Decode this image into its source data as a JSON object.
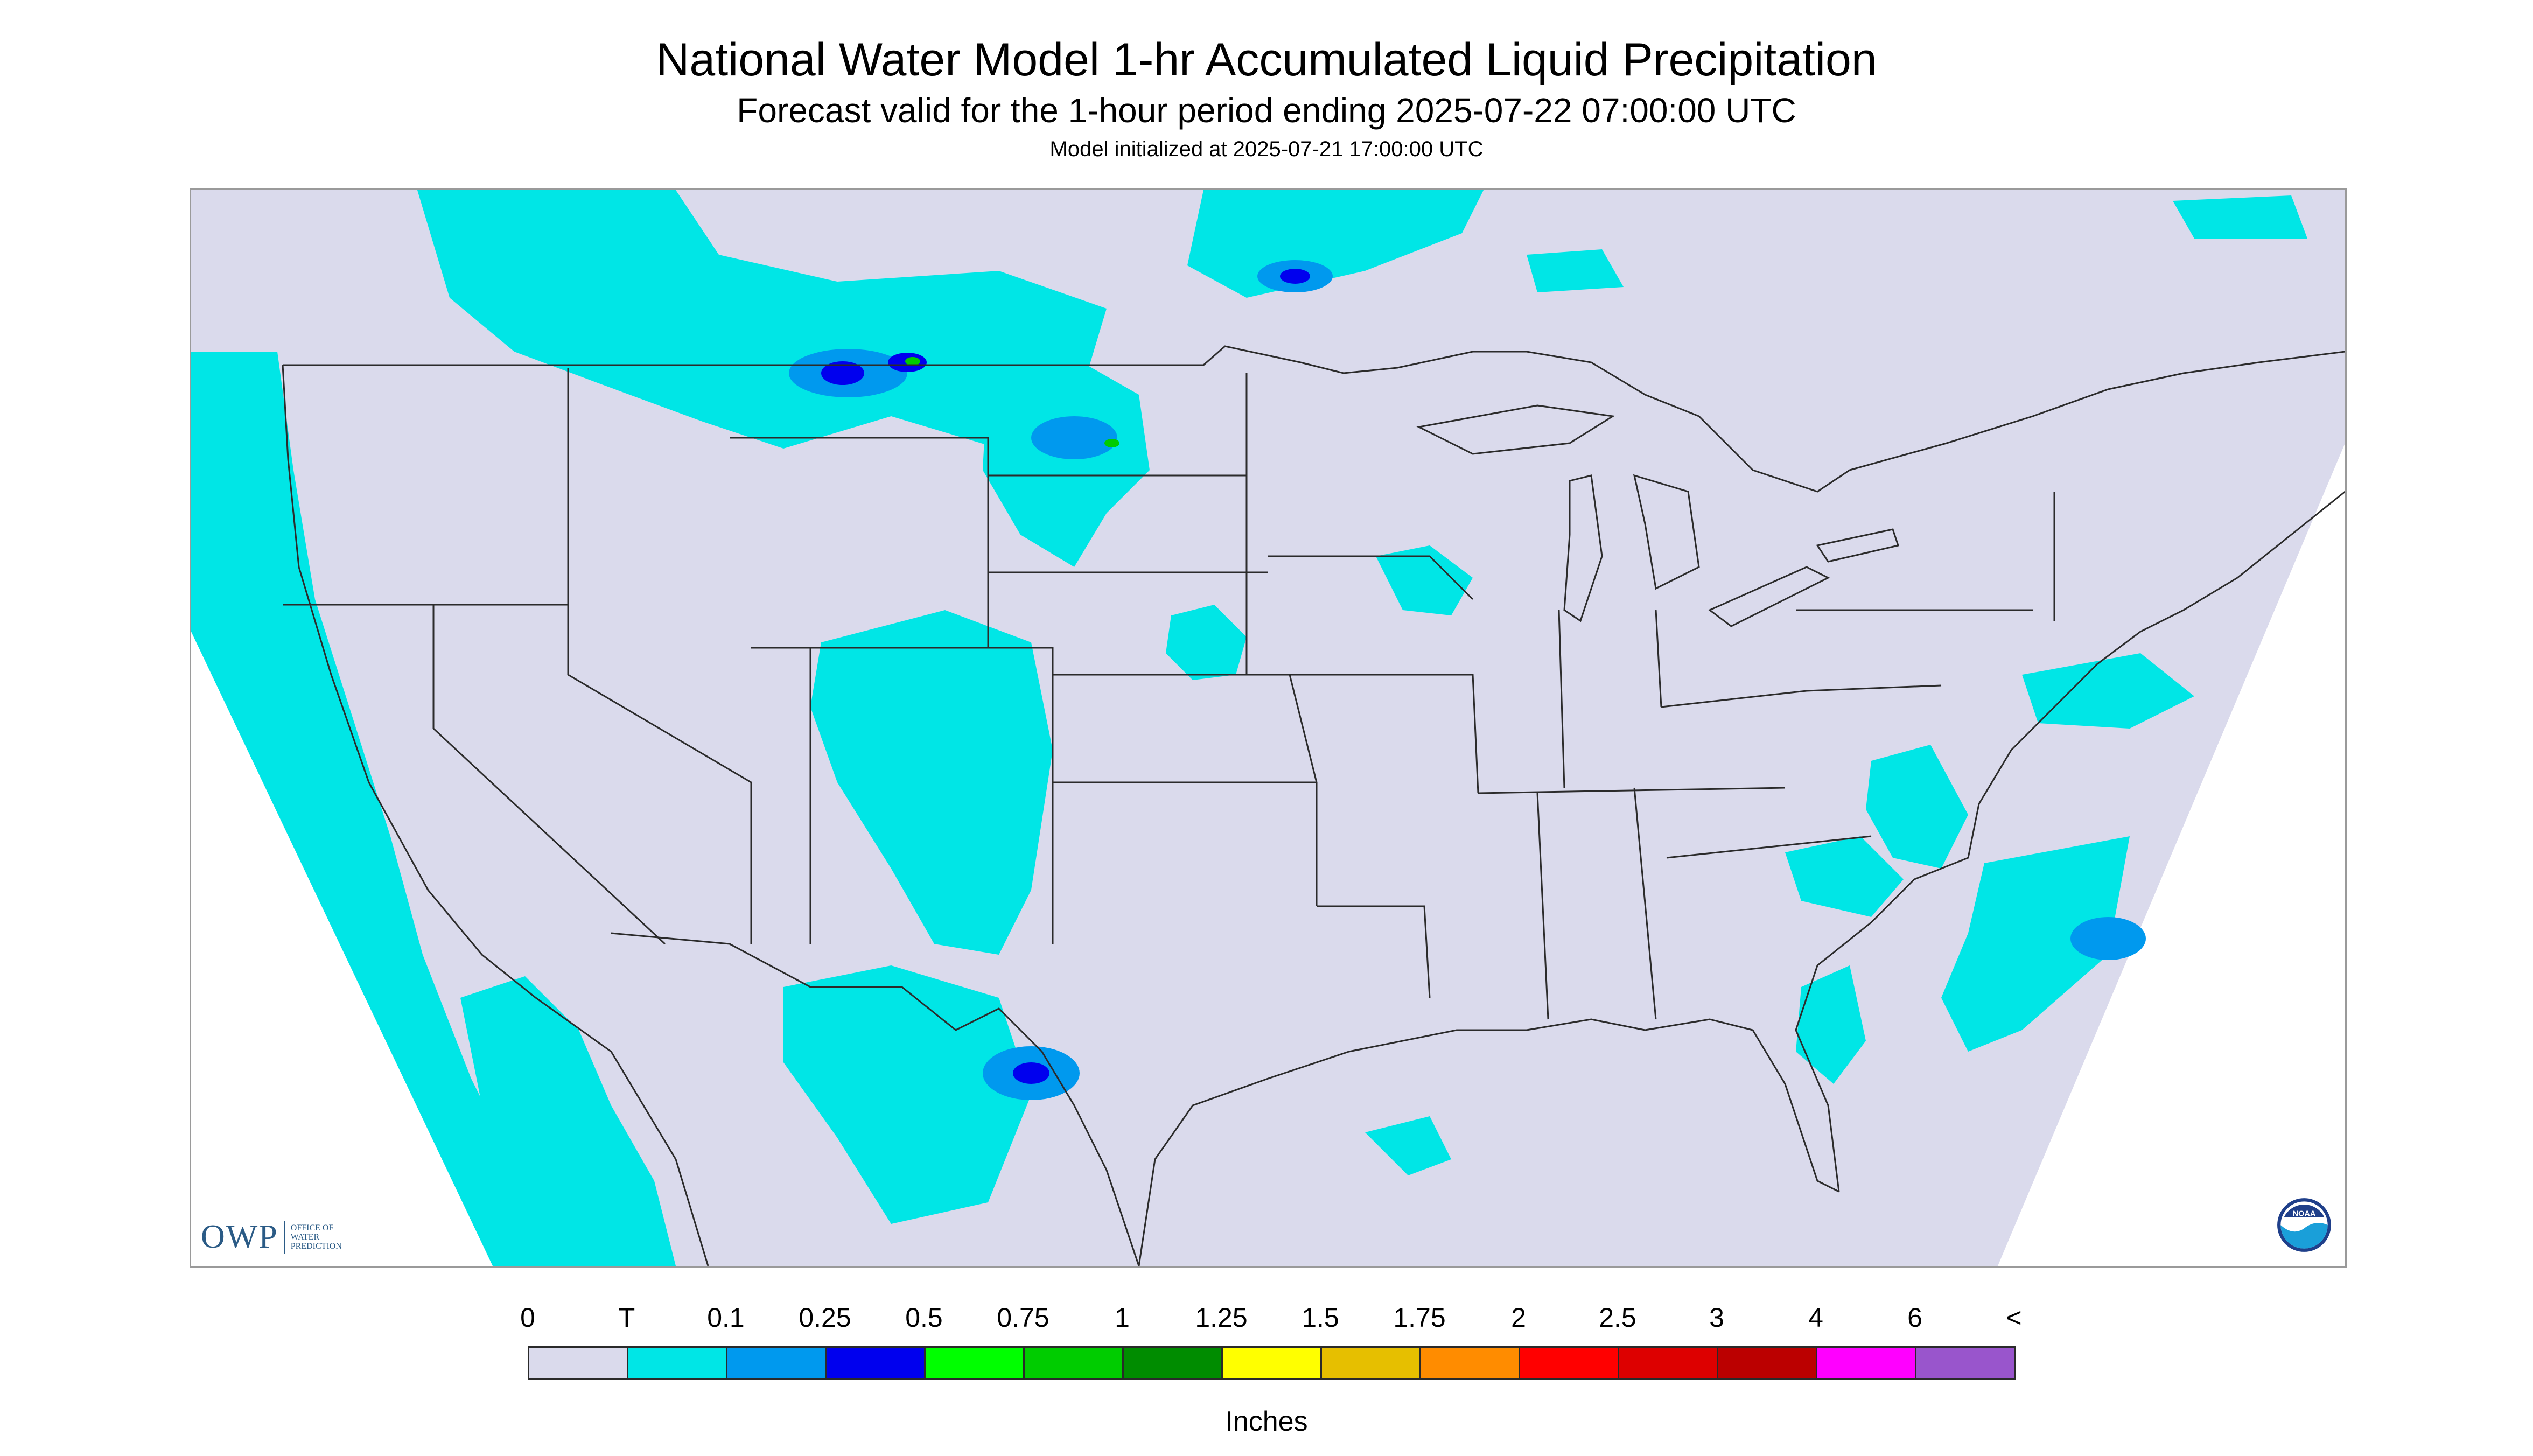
{
  "header": {
    "title": "National Water Model 1-hr Accumulated Liquid Precipitation",
    "subtitle": "Forecast valid for the 1-hour period ending 2025-07-22 07:00:00 UTC",
    "init_line": "Model initialized at 2025-07-21 17:00:00 UTC"
  },
  "map": {
    "background_color": "#dadaec",
    "boundary_color": "#2b2b2b",
    "no_data_color": "#ffffff",
    "precip_colors": {
      "trace": "#00e6e6",
      "light": "#0099ee",
      "moderate": "#0000ee",
      "heavy": "#00cc00"
    }
  },
  "logos": {
    "owp_letters": "OWP",
    "owp_org_lines": [
      "OFFICE OF",
      "WATER",
      "PREDICTION"
    ],
    "noaa_text": "NOAA"
  },
  "legend": {
    "tick_labels": [
      "0",
      "T",
      "0.1",
      "0.25",
      "0.5",
      "0.75",
      "1",
      "1.25",
      "1.5",
      "1.75",
      "2",
      "2.5",
      "3",
      "4",
      "6",
      "<"
    ],
    "colors": [
      "#dadaec",
      "#00e6e6",
      "#0099ee",
      "#0000ee",
      "#00ff00",
      "#00cc00",
      "#008c00",
      "#ffff00",
      "#e6bf00",
      "#ff8c00",
      "#ff0000",
      "#dd0000",
      "#bb0000",
      "#ff00ff",
      "#9955cc"
    ],
    "unit_label": "Inches"
  }
}
